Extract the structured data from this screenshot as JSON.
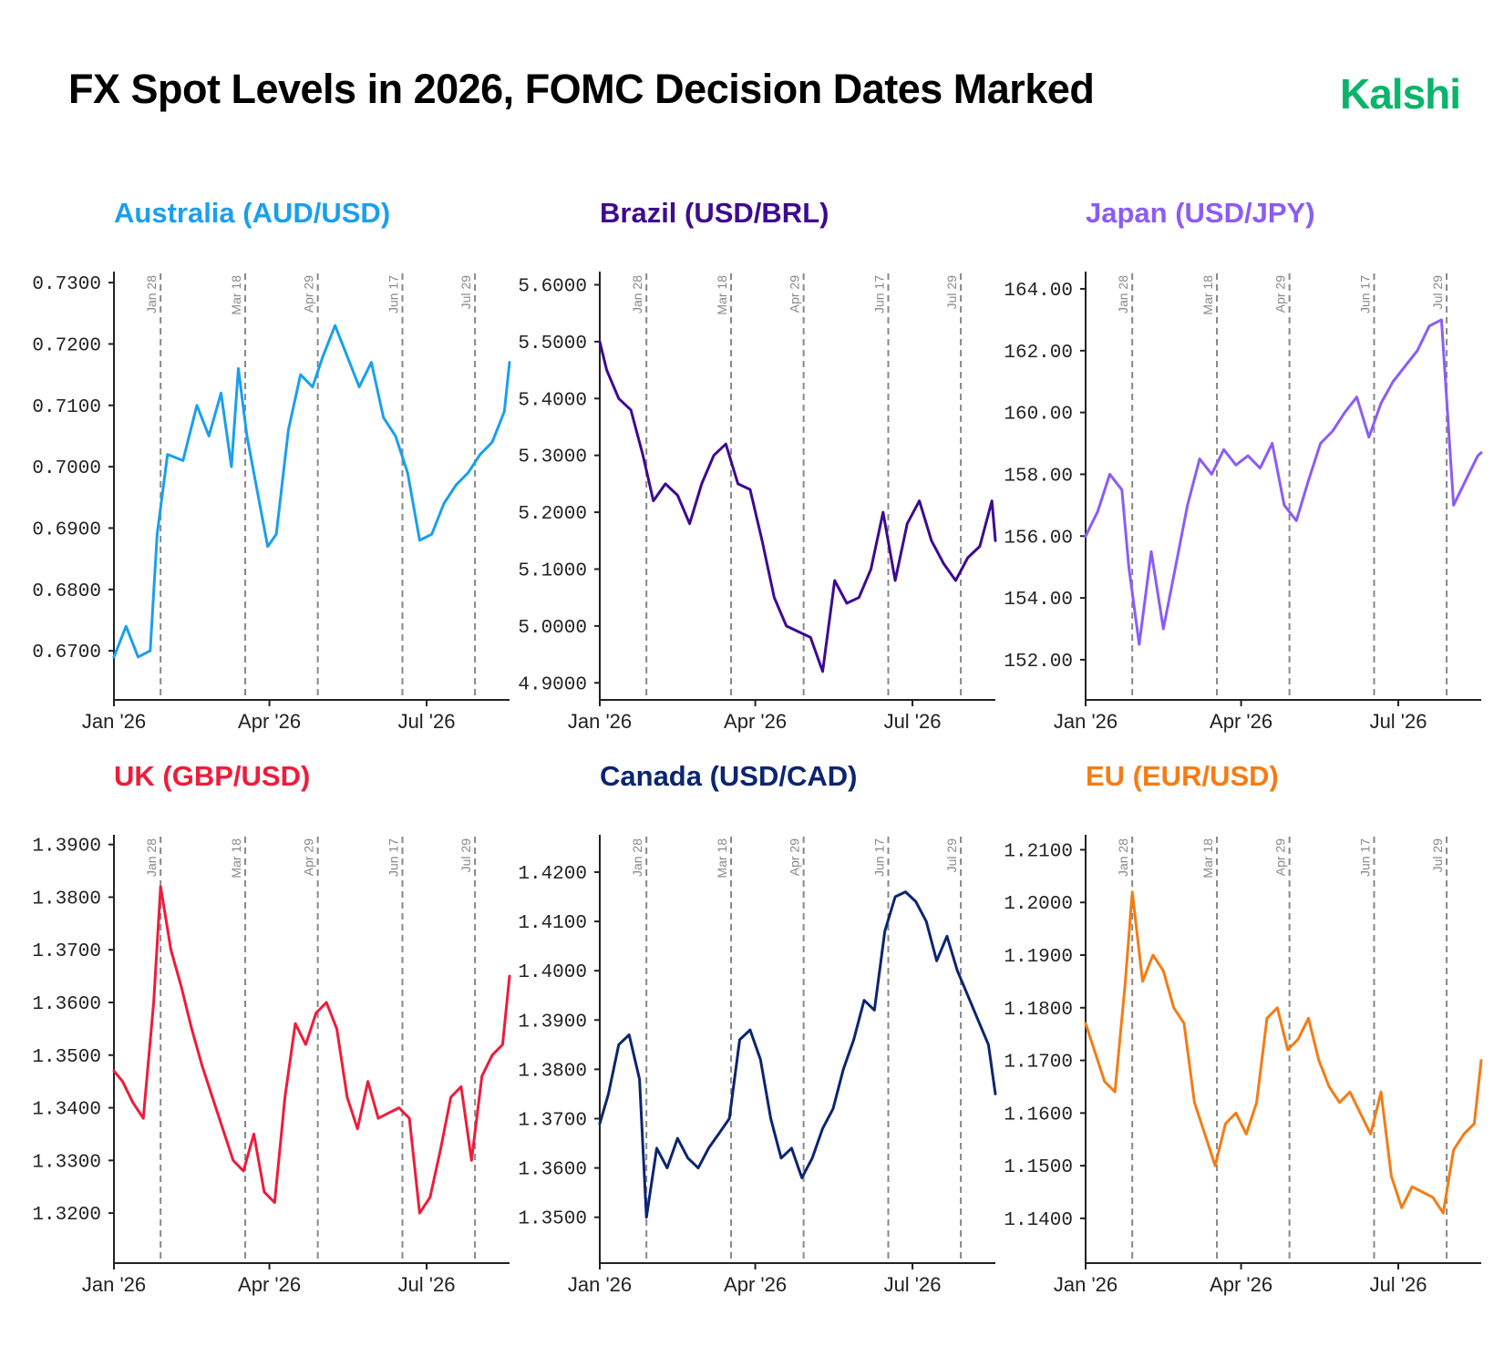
{
  "title": "FX Spot Levels in 2026, FOMC Decision Dates Marked",
  "brand": "Kalshi",
  "colors": {
    "axis": "#222222",
    "fomc_line": "#888888",
    "fomc_label": "#888888",
    "tick_text": "#222222",
    "brand": "#0ab46b"
  },
  "x_axis": {
    "range": [
      "2026-01-01",
      "2026-08-18"
    ],
    "ticks": [
      {
        "date": "2026-01-01",
        "label": "Jan '26"
      },
      {
        "date": "2026-04-01",
        "label": "Apr '26"
      },
      {
        "date": "2026-07-01",
        "label": "Jul '26"
      }
    ]
  },
  "fomc_dates": [
    {
      "date": "2026-01-28",
      "label": "Jan 28"
    },
    {
      "date": "2026-03-18",
      "label": "Mar 18"
    },
    {
      "date": "2026-04-29",
      "label": "Apr 29"
    },
    {
      "date": "2026-06-17",
      "label": "Jun 17"
    },
    {
      "date": "2026-07-29",
      "label": "Jul 29"
    }
  ],
  "chart_data": [
    {
      "type": "line",
      "title": "Australia (AUD/USD)",
      "color": "#1a9fee",
      "ylim": [
        0.662,
        0.7315
      ],
      "yticks": [
        0.67,
        0.68,
        0.69,
        0.7,
        0.71,
        0.72,
        0.73
      ],
      "decimals": 4,
      "series": [
        {
          "x": [
            "2026-01-01",
            "2026-01-08",
            "2026-01-15",
            "2026-01-22",
            "2026-01-26",
            "2026-02-01",
            "2026-02-10",
            "2026-02-18",
            "2026-02-25",
            "2026-03-04",
            "2026-03-10",
            "2026-03-14",
            "2026-03-19",
            "2026-03-25",
            "2026-03-31",
            "2026-04-05",
            "2026-04-12",
            "2026-04-19",
            "2026-04-26",
            "2026-05-02",
            "2026-05-09",
            "2026-05-16",
            "2026-05-23",
            "2026-05-30",
            "2026-06-06",
            "2026-06-13",
            "2026-06-20",
            "2026-06-27",
            "2026-07-04",
            "2026-07-11",
            "2026-07-18",
            "2026-07-25",
            "2026-08-01",
            "2026-08-08",
            "2026-08-15",
            "2026-08-18"
          ],
          "y": [
            0.669,
            0.674,
            0.669,
            0.67,
            0.689,
            0.702,
            0.701,
            0.71,
            0.705,
            0.712,
            0.7,
            0.716,
            0.705,
            0.696,
            0.687,
            0.689,
            0.706,
            0.715,
            0.713,
            0.718,
            0.723,
            0.718,
            0.713,
            0.717,
            0.708,
            0.705,
            0.699,
            0.688,
            0.689,
            0.694,
            0.697,
            0.699,
            0.702,
            0.704,
            0.709,
            0.717
          ]
        }
      ]
    },
    {
      "type": "line",
      "title": "Brazil (USD/BRL)",
      "color": "#3d0a91",
      "ylim": [
        4.87,
        5.62
      ],
      "yticks": [
        4.9,
        5.0,
        5.1,
        5.2,
        5.3,
        5.4,
        5.5,
        5.6
      ],
      "decimals": 4,
      "series": [
        {
          "x": [
            "2026-01-01",
            "2026-01-05",
            "2026-01-12",
            "2026-01-19",
            "2026-01-26",
            "2026-02-01",
            "2026-02-08",
            "2026-02-15",
            "2026-02-22",
            "2026-03-01",
            "2026-03-08",
            "2026-03-15",
            "2026-03-22",
            "2026-03-29",
            "2026-04-05",
            "2026-04-12",
            "2026-04-19",
            "2026-04-26",
            "2026-05-03",
            "2026-05-10",
            "2026-05-17",
            "2026-05-24",
            "2026-05-31",
            "2026-06-07",
            "2026-06-14",
            "2026-06-21",
            "2026-06-28",
            "2026-07-05",
            "2026-07-12",
            "2026-07-19",
            "2026-07-26",
            "2026-08-02",
            "2026-08-09",
            "2026-08-16",
            "2026-08-18"
          ],
          "y": [
            5.5,
            5.45,
            5.4,
            5.38,
            5.3,
            5.22,
            5.25,
            5.23,
            5.18,
            5.25,
            5.3,
            5.32,
            5.25,
            5.24,
            5.15,
            5.05,
            5.0,
            4.99,
            4.98,
            4.92,
            5.08,
            5.04,
            5.05,
            5.1,
            5.2,
            5.08,
            5.18,
            5.22,
            5.15,
            5.11,
            5.08,
            5.12,
            5.14,
            5.22,
            5.15
          ]
        }
      ]
    },
    {
      "type": "line",
      "title": "Japan (USD/JPY)",
      "color": "#8b5cf6",
      "ylim": [
        150.7,
        164.5
      ],
      "yticks": [
        152,
        154,
        156,
        158,
        160,
        162,
        164
      ],
      "decimals": 2,
      "series": [
        {
          "x": [
            "2026-01-01",
            "2026-01-08",
            "2026-01-15",
            "2026-01-22",
            "2026-01-26",
            "2026-02-01",
            "2026-02-08",
            "2026-02-15",
            "2026-02-22",
            "2026-03-01",
            "2026-03-08",
            "2026-03-15",
            "2026-03-22",
            "2026-03-29",
            "2026-04-05",
            "2026-04-12",
            "2026-04-19",
            "2026-04-26",
            "2026-05-03",
            "2026-05-10",
            "2026-05-17",
            "2026-05-24",
            "2026-05-31",
            "2026-06-07",
            "2026-06-14",
            "2026-06-21",
            "2026-06-28",
            "2026-07-05",
            "2026-07-12",
            "2026-07-19",
            "2026-07-26",
            "2026-08-02",
            "2026-08-09",
            "2026-08-16",
            "2026-08-18"
          ],
          "y": [
            156.0,
            156.8,
            158.0,
            157.5,
            155.0,
            152.5,
            155.5,
            153.0,
            155.0,
            157.0,
            158.5,
            158.0,
            158.8,
            158.3,
            158.6,
            158.2,
            159.0,
            157.0,
            156.5,
            157.8,
            159.0,
            159.4,
            160.0,
            160.5,
            159.2,
            160.3,
            161.0,
            161.5,
            162.0,
            162.8,
            163.0,
            157.0,
            157.8,
            158.6,
            158.7
          ]
        }
      ]
    },
    {
      "type": "line",
      "title": "UK (GBP/USD)",
      "color": "#ee1c3a",
      "ylim": [
        1.3105,
        1.3915
      ],
      "yticks": [
        1.32,
        1.33,
        1.34,
        1.35,
        1.36,
        1.37,
        1.38,
        1.39
      ],
      "decimals": 4,
      "series": [
        {
          "x": [
            "2026-01-01",
            "2026-01-06",
            "2026-01-12",
            "2026-01-18",
            "2026-01-24",
            "2026-01-28",
            "2026-02-03",
            "2026-02-09",
            "2026-02-15",
            "2026-02-21",
            "2026-02-27",
            "2026-03-05",
            "2026-03-11",
            "2026-03-17",
            "2026-03-23",
            "2026-03-29",
            "2026-04-04",
            "2026-04-10",
            "2026-04-16",
            "2026-04-22",
            "2026-04-28",
            "2026-05-04",
            "2026-05-10",
            "2026-05-16",
            "2026-05-22",
            "2026-05-28",
            "2026-06-03",
            "2026-06-09",
            "2026-06-15",
            "2026-06-21",
            "2026-06-27",
            "2026-07-03",
            "2026-07-09",
            "2026-07-15",
            "2026-07-21",
            "2026-07-27",
            "2026-08-02",
            "2026-08-08",
            "2026-08-14",
            "2026-08-18"
          ],
          "y": [
            1.347,
            1.345,
            1.341,
            1.338,
            1.36,
            1.382,
            1.37,
            1.363,
            1.355,
            1.348,
            1.342,
            1.336,
            1.33,
            1.328,
            1.335,
            1.324,
            1.322,
            1.342,
            1.356,
            1.352,
            1.358,
            1.36,
            1.355,
            1.342,
            1.336,
            1.345,
            1.338,
            1.339,
            1.34,
            1.338,
            1.32,
            1.323,
            1.332,
            1.342,
            1.344,
            1.33,
            1.346,
            1.35,
            1.352,
            1.365
          ]
        }
      ]
    },
    {
      "type": "line",
      "title": "Canada (USD/CAD)",
      "color": "#0b2570",
      "ylim": [
        1.3407,
        1.4272
      ],
      "yticks": [
        1.35,
        1.36,
        1.37,
        1.38,
        1.39,
        1.4,
        1.41,
        1.42
      ],
      "decimals": 4,
      "series": [
        {
          "x": [
            "2026-01-01",
            "2026-01-06",
            "2026-01-12",
            "2026-01-18",
            "2026-01-24",
            "2026-01-28",
            "2026-02-03",
            "2026-02-09",
            "2026-02-15",
            "2026-02-21",
            "2026-02-27",
            "2026-03-05",
            "2026-03-11",
            "2026-03-17",
            "2026-03-23",
            "2026-03-29",
            "2026-04-04",
            "2026-04-10",
            "2026-04-16",
            "2026-04-22",
            "2026-04-28",
            "2026-05-04",
            "2026-05-10",
            "2026-05-16",
            "2026-05-22",
            "2026-05-28",
            "2026-06-03",
            "2026-06-09",
            "2026-06-15",
            "2026-06-21",
            "2026-06-27",
            "2026-07-03",
            "2026-07-09",
            "2026-07-15",
            "2026-07-21",
            "2026-07-27",
            "2026-08-02",
            "2026-08-08",
            "2026-08-14",
            "2026-08-18"
          ],
          "y": [
            1.369,
            1.375,
            1.385,
            1.387,
            1.378,
            1.35,
            1.364,
            1.36,
            1.366,
            1.362,
            1.36,
            1.364,
            1.367,
            1.37,
            1.386,
            1.388,
            1.382,
            1.37,
            1.362,
            1.364,
            1.358,
            1.362,
            1.368,
            1.372,
            1.38,
            1.386,
            1.394,
            1.392,
            1.408,
            1.415,
            1.416,
            1.414,
            1.41,
            1.402,
            1.407,
            1.4,
            1.395,
            1.39,
            1.385,
            1.375
          ]
        }
      ]
    },
    {
      "type": "line",
      "title": "EU (EUR/USD)",
      "color": "#f47c15",
      "ylim": [
        1.1315,
        1.2125
      ],
      "yticks": [
        1.14,
        1.15,
        1.16,
        1.17,
        1.18,
        1.19,
        1.2,
        1.21
      ],
      "decimals": 4,
      "series": [
        {
          "x": [
            "2026-01-01",
            "2026-01-06",
            "2026-01-12",
            "2026-01-18",
            "2026-01-24",
            "2026-01-28",
            "2026-02-03",
            "2026-02-09",
            "2026-02-15",
            "2026-02-21",
            "2026-02-27",
            "2026-03-05",
            "2026-03-11",
            "2026-03-17",
            "2026-03-23",
            "2026-03-29",
            "2026-04-04",
            "2026-04-10",
            "2026-04-16",
            "2026-04-22",
            "2026-04-28",
            "2026-05-04",
            "2026-05-10",
            "2026-05-16",
            "2026-05-22",
            "2026-05-28",
            "2026-06-03",
            "2026-06-09",
            "2026-06-15",
            "2026-06-21",
            "2026-06-27",
            "2026-07-03",
            "2026-07-09",
            "2026-07-15",
            "2026-07-21",
            "2026-07-27",
            "2026-08-02",
            "2026-08-08",
            "2026-08-14",
            "2026-08-18"
          ],
          "y": [
            1.177,
            1.172,
            1.166,
            1.164,
            1.185,
            1.202,
            1.185,
            1.19,
            1.187,
            1.18,
            1.177,
            1.162,
            1.156,
            1.15,
            1.158,
            1.16,
            1.156,
            1.162,
            1.178,
            1.18,
            1.172,
            1.174,
            1.178,
            1.17,
            1.165,
            1.162,
            1.164,
            1.16,
            1.156,
            1.164,
            1.148,
            1.142,
            1.146,
            1.145,
            1.144,
            1.141,
            1.153,
            1.156,
            1.158,
            1.17
          ]
        }
      ]
    }
  ]
}
